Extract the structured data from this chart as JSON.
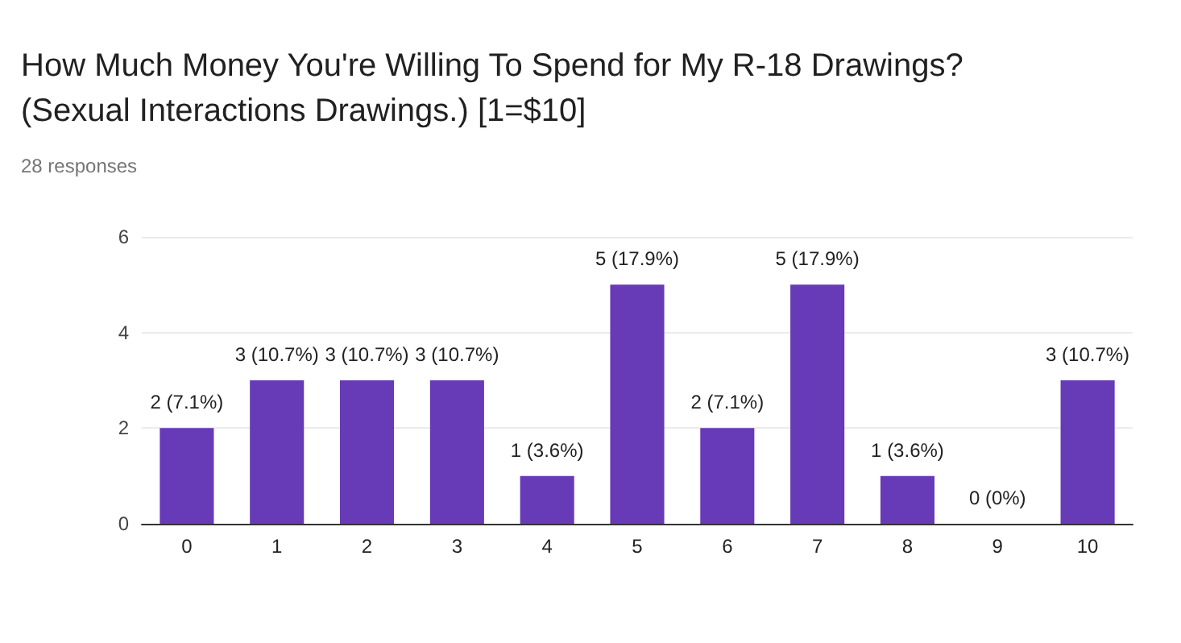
{
  "chart_data": {
    "type": "bar",
    "title": "How Much Money You're Willing To Spend for My R-18 Drawings? (Sexual Interactions Drawings.) [1=$10]",
    "subtitle": "28 responses",
    "categories": [
      "0",
      "1",
      "2",
      "3",
      "4",
      "5",
      "6",
      "7",
      "8",
      "9",
      "10"
    ],
    "values": [
      2,
      3,
      3,
      3,
      1,
      5,
      2,
      5,
      1,
      0,
      3
    ],
    "value_labels": [
      "2 (7.1%)",
      "3 (10.7%)",
      "3 (10.7%)",
      "3 (10.7%)",
      "1 (3.6%)",
      "5 (17.9%)",
      "2 (7.1%)",
      "5 (17.9%)",
      "1 (3.6%)",
      "0 (0%)",
      "3 (10.7%)"
    ],
    "color": "#673ab7",
    "ylim": [
      0,
      6
    ],
    "yticks": [
      0,
      2,
      4,
      6
    ],
    "grid": "y"
  }
}
